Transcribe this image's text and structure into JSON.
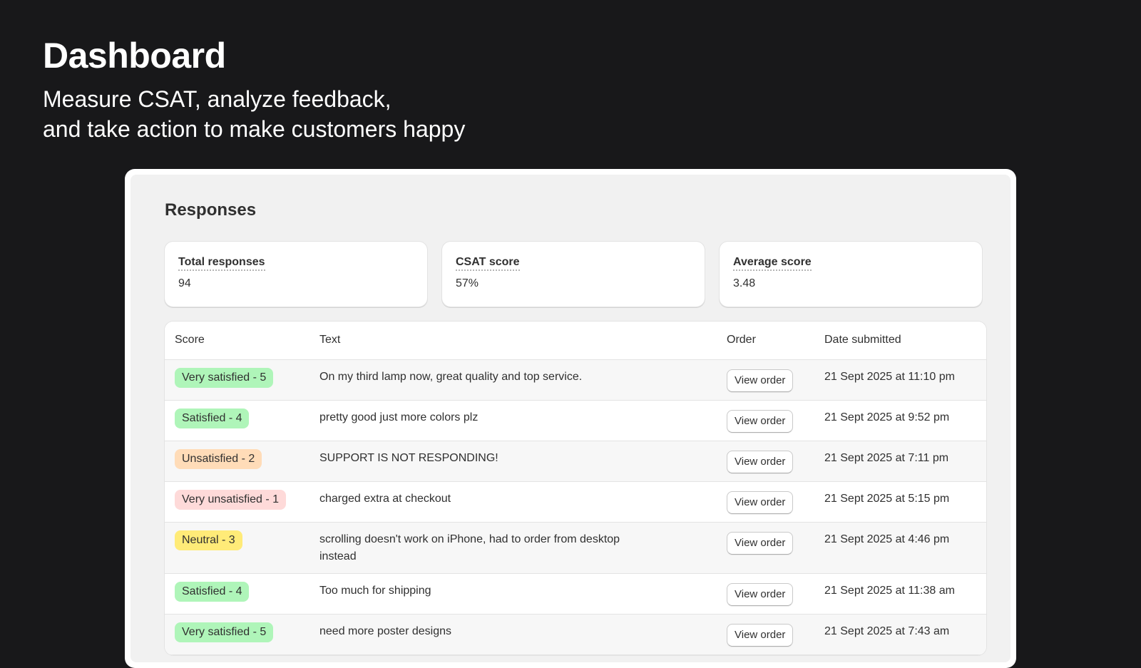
{
  "hero": {
    "title": "Dashboard",
    "subtitle": "Measure CSAT, analyze feedback,\nand take action to make customers happy"
  },
  "panel": {
    "title": "Responses"
  },
  "metrics": [
    {
      "label": "Total responses",
      "value": "94"
    },
    {
      "label": "CSAT score",
      "value": "57%"
    },
    {
      "label": "Average score",
      "value": "3.48"
    }
  ],
  "table": {
    "headers": [
      "Score",
      "Text",
      "Order",
      "Date submitted"
    ],
    "rows": [
      {
        "score": "Very satisfied - 5",
        "color": "#aff5b9",
        "text": "On my third lamp now, great quality and top service.",
        "order": "View order",
        "date": "21 Sept 2025 at 11:10 pm"
      },
      {
        "score": "Satisfied - 4",
        "color": "#aff5b9",
        "text": "pretty good just more colors plz",
        "order": "View order",
        "date": "21 Sept 2025 at 9:52 pm"
      },
      {
        "score": "Unsatisfied - 2",
        "color": "#ffdcb8",
        "text": "SUPPORT IS NOT RESPONDING!",
        "order": "View order",
        "date": "21 Sept 2025 at 7:11 pm"
      },
      {
        "score": "Very unsatisfied - 1",
        "color": "#fedad9",
        "text": "charged extra at checkout",
        "order": "View order",
        "date": "21 Sept 2025 at 5:15 pm"
      },
      {
        "score": "Neutral - 3",
        "color": "#ffeb78",
        "text": "scrolling doesn't work on iPhone, had to order from desktop instead",
        "order": "View order",
        "date": "21 Sept 2025 at 4:46 pm"
      },
      {
        "score": "Satisfied - 4",
        "color": "#aff5b9",
        "text": "Too much for shipping",
        "order": "View order",
        "date": "21 Sept 2025 at 11:38 am"
      },
      {
        "score": "Very satisfied - 5",
        "color": "#aff5b9",
        "text": "need more poster designs",
        "order": "View order",
        "date": "21 Sept 2025 at 7:43 am"
      }
    ]
  }
}
